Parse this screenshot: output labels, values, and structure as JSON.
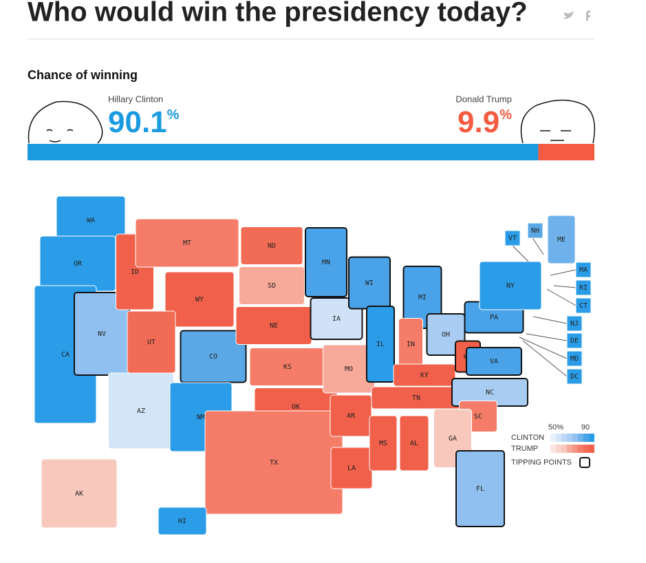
{
  "header": {
    "title": "Who would win the presidency today?"
  },
  "chance_of_winning": {
    "heading": "Chance of winning",
    "candidates": [
      {
        "name": "Hillary Clinton",
        "value": 90.1,
        "unit": "%",
        "color": "#1a9be0"
      },
      {
        "name": "Donald Trump",
        "value": 9.9,
        "unit": "%",
        "color": "#f45b40"
      }
    ]
  },
  "map": {
    "states": [
      {
        "abbr": "WA",
        "color": "#2b9de8"
      },
      {
        "abbr": "OR",
        "color": "#2b9de8"
      },
      {
        "abbr": "CA",
        "color": "#2b9de8"
      },
      {
        "abbr": "NV",
        "color": "#8fc0ef",
        "tipping_point": true
      },
      {
        "abbr": "ID",
        "color": "#f0604a"
      },
      {
        "abbr": "MT",
        "color": "#f47c68"
      },
      {
        "abbr": "WY",
        "color": "#f0604a"
      },
      {
        "abbr": "UT",
        "color": "#f26b54"
      },
      {
        "abbr": "AZ",
        "color": "#d3e5f8"
      },
      {
        "abbr": "CO",
        "color": "#5aa9e6",
        "tipping_point": true
      },
      {
        "abbr": "NM",
        "color": "#2b9de8"
      },
      {
        "abbr": "ND",
        "color": "#f26b54"
      },
      {
        "abbr": "SD",
        "color": "#f7a99a"
      },
      {
        "abbr": "NE",
        "color": "#f0604a"
      },
      {
        "abbr": "KS",
        "color": "#f47c68"
      },
      {
        "abbr": "OK",
        "color": "#f0604a"
      },
      {
        "abbr": "TX",
        "color": "#f47c68"
      },
      {
        "abbr": "MN",
        "color": "#4aa3e8",
        "tipping_point": true
      },
      {
        "abbr": "IA",
        "color": "#cfe2f7",
        "tipping_point": true
      },
      {
        "abbr": "MO",
        "color": "#f7a99a"
      },
      {
        "abbr": "AR",
        "color": "#f0604a"
      },
      {
        "abbr": "LA",
        "color": "#f0604a"
      },
      {
        "abbr": "WI",
        "color": "#4aa3e8",
        "tipping_point": true
      },
      {
        "abbr": "IL",
        "color": "#2b9de8",
        "tipping_point": true
      },
      {
        "abbr": "MS",
        "color": "#f0604a"
      },
      {
        "abbr": "MI",
        "color": "#4aa3e8",
        "tipping_point": true
      },
      {
        "abbr": "IN",
        "color": "#f47c68"
      },
      {
        "abbr": "KY",
        "color": "#f0604a"
      },
      {
        "abbr": "TN",
        "color": "#f0604a"
      },
      {
        "abbr": "AL",
        "color": "#f0604a"
      },
      {
        "abbr": "OH",
        "color": "#a9cdf2",
        "tipping_point": true
      },
      {
        "abbr": "WV",
        "color": "#f0604a",
        "tipping_point": true
      },
      {
        "abbr": "VA",
        "color": "#4aa3e8",
        "tipping_point": true
      },
      {
        "abbr": "NC",
        "color": "#a9cdf2",
        "tipping_point": true
      },
      {
        "abbr": "SC",
        "color": "#f47c68"
      },
      {
        "abbr": "GA",
        "color": "#f9c8bd"
      },
      {
        "abbr": "FL",
        "color": "#8fc0ef",
        "tipping_point": true
      },
      {
        "abbr": "PA",
        "color": "#4aa3e8",
        "tipping_point": true
      },
      {
        "abbr": "NY",
        "color": "#2b9de8"
      },
      {
        "abbr": "ME",
        "color": "#6fb2eb"
      },
      {
        "abbr": "AK",
        "color": "#f9c8bd"
      },
      {
        "abbr": "HI",
        "color": "#2b9de8"
      },
      {
        "abbr": "VT",
        "color": "#2b9de8"
      },
      {
        "abbr": "NH",
        "color": "#5aa9e6"
      },
      {
        "abbr": "MA",
        "color": "#2b9de8"
      },
      {
        "abbr": "RI",
        "color": "#2b9de8"
      },
      {
        "abbr": "CT",
        "color": "#2b9de8"
      },
      {
        "abbr": "NJ",
        "color": "#2b9de8"
      },
      {
        "abbr": "DE",
        "color": "#2b9de8"
      },
      {
        "abbr": "MD",
        "color": "#2b9de8"
      },
      {
        "abbr": "DC",
        "color": "#2b9de8"
      }
    ]
  },
  "legend": {
    "scale_low": "50%",
    "scale_high": "90",
    "clinton_label": "CLINTON",
    "trump_label": "TRUMP",
    "tipping_label": "TIPPING POINTS",
    "clinton_colors": [
      "#e8f1fb",
      "#d3e5f8",
      "#bcd8f4",
      "#a9cdf2",
      "#8fc0ef",
      "#6fb2eb",
      "#4aa3e8",
      "#2b9de8"
    ],
    "trump_colors": [
      "#fce6e1",
      "#f9d4cb",
      "#f9c8bd",
      "#f7a99a",
      "#f59483",
      "#f47c68",
      "#f26b54",
      "#f0604a"
    ]
  }
}
